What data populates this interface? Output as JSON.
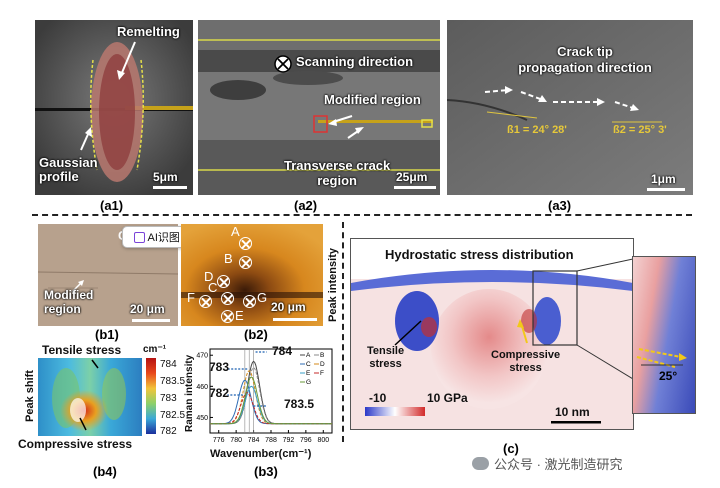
{
  "panel_a1": {
    "labels": {
      "remelting": "Remelting",
      "gaussian": "Gaussian\nprofile",
      "scale": "5μm"
    },
    "caption": "(a1)"
  },
  "panel_a2": {
    "labels": {
      "scanning": "Scanning direction",
      "modified": "Modified region",
      "transverse": "Transverse crack\nregion",
      "scale": "25μm"
    },
    "caption": "(a2)"
  },
  "panel_a3": {
    "labels": {
      "title": "Crack tip\npropagation direction",
      "angle1": "ß1 = 24° 28'",
      "angle2": "ß2 = 25° 3'",
      "scale": "1μm"
    },
    "caption": "(a3)"
  },
  "panel_b1": {
    "labels": {
      "modified": "Modified\nregion",
      "scale": "20 μm",
      "c_mark": "C"
    },
    "ai_button": "AI识图",
    "caption": "(b1)"
  },
  "panel_b2": {
    "points": [
      "A",
      "B",
      "D",
      "C",
      "F",
      "G",
      "E"
    ],
    "scale": "20 μm",
    "ylabel": "Peak intensity",
    "caption": "(b2)"
  },
  "panel_b3": {
    "ylabel": "Raman intensity",
    "xlabel": "Wavenumber(cm⁻¹)",
    "annotations": [
      "784",
      "783",
      "782",
      "783.5"
    ],
    "caption": "(b3)",
    "chart_data": {
      "type": "line",
      "xlim": [
        774,
        802
      ],
      "ylim": [
        445,
        472
      ],
      "x_ticks": [
        776,
        780,
        784,
        788,
        792,
        796,
        800
      ],
      "y_ticks": [
        450,
        460,
        470
      ],
      "series": [
        {
          "name": "A",
          "color": "#444444",
          "center": 784.0,
          "height": 468
        },
        {
          "name": "B",
          "color": "#8a8a8a",
          "center": 784.0,
          "height": 466
        },
        {
          "name": "C",
          "color": "#2f6db5",
          "center": 782.0,
          "height": 462
        },
        {
          "name": "D",
          "color": "#d48a1a",
          "center": 783.0,
          "height": 465
        },
        {
          "name": "E",
          "color": "#3aa0c8",
          "center": 783.5,
          "height": 460
        },
        {
          "name": "F",
          "color": "#c62828",
          "center": 782.5,
          "height": 458
        },
        {
          "name": "G",
          "color": "#6a9a3a",
          "center": 783.5,
          "height": 463
        }
      ]
    }
  },
  "panel_b4": {
    "tensile": "Tensile stress",
    "compressive": "Compressive stress",
    "ylabel": "Peak shift",
    "colorbar_unit": "cm⁻¹",
    "colorbar_ticks": [
      "784",
      "783.5",
      "783",
      "782.5",
      "782"
    ],
    "caption": "(b4)"
  },
  "panel_c": {
    "title": "Hydrostatic stress distribution",
    "tensile": "Tensile\nstress",
    "compressive": "Compressive\nstress",
    "cbar_min": "-10",
    "cbar_max": "10 GPa",
    "scale": "10 nm",
    "angle": "25°",
    "caption": "(c)"
  },
  "watermark": "公众号 · 激光制造研究"
}
